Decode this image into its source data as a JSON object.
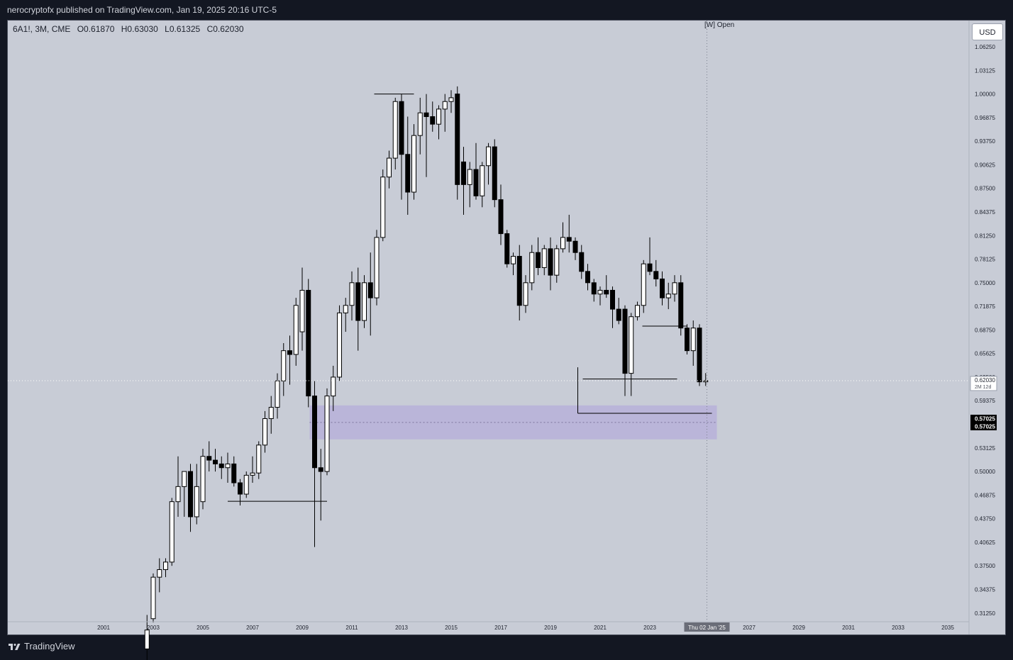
{
  "header": {
    "publisher_text": "nerocryptofx published on TradingView.com, Jan 19, 2025 20:16 UTC-5"
  },
  "legend": {
    "symbol": "6A1!, 3M, CME",
    "open": "O0.61870",
    "high": "H0.63030",
    "low": "L0.61325",
    "close": "C0.62030"
  },
  "currency_button": "USD",
  "session_label": "[W] Open",
  "footer": {
    "brand": "TradingView"
  },
  "colors": {
    "bull_body": "#ffffff",
    "bear_body": "#000000",
    "zone": "#b5aed9",
    "background": "#c8ccd6"
  },
  "chart_data": {
    "type": "candlestick",
    "interval": "3M",
    "x_tick_labels": [
      "2001",
      "2003",
      "2005",
      "2007",
      "2009",
      "2011",
      "2013",
      "2015",
      "2017",
      "2019",
      "2021",
      "2023",
      "2027",
      "2029",
      "2031",
      "2033",
      "2035"
    ],
    "crosshair_date_label": "Thu 02 Jan '25",
    "y_tick_labels": [
      "1.06250",
      "1.03125",
      "1.00000",
      "0.96875",
      "0.93750",
      "0.90625",
      "0.87500",
      "0.84375",
      "0.81250",
      "0.78125",
      "0.75000",
      "0.71875",
      "0.68750",
      "0.65625",
      "0.62500",
      "0.59375",
      "0.53125",
      "0.50000",
      "0.46875",
      "0.43750",
      "0.40625",
      "0.37500",
      "0.34375",
      "0.31250"
    ],
    "ylim": [
      0.31,
      1.075
    ],
    "price_label": {
      "value": "0.62030",
      "countdown": "2M 12d"
    },
    "level_labels": [
      "0.57025",
      "0.57025"
    ],
    "zone": {
      "x_start": 2009.3,
      "x_end": 2025.7,
      "y_low": 0.5425,
      "y_high": 0.5875
    },
    "levels": [
      {
        "x_start": 2006.0,
        "x_end": 2010.0,
        "y": 0.4605
      },
      {
        "x_start": 2011.9,
        "x_end": 2013.5,
        "y": 1.0
      },
      {
        "x_start": 2020.1,
        "x_end": 2025.5,
        "y": 0.577
      },
      {
        "x_start": 2020.3,
        "x_end": 2024.1,
        "y": 0.6225
      },
      {
        "x_start": 2022.7,
        "x_end": 2024.5,
        "y": 0.6925
      }
    ],
    "cursor_x": 2025.3,
    "cursor_y": 0.6203,
    "candles": [
      {
        "t": 2002.75,
        "o": 0.265,
        "h": 0.31,
        "l": 0.25,
        "c": 0.29
      },
      {
        "t": 2003.0,
        "o": 0.305,
        "h": 0.365,
        "l": 0.3,
        "c": 0.36
      },
      {
        "t": 2003.25,
        "o": 0.36,
        "h": 0.385,
        "l": 0.34,
        "c": 0.37
      },
      {
        "t": 2003.5,
        "o": 0.37,
        "h": 0.385,
        "l": 0.36,
        "c": 0.38
      },
      {
        "t": 2003.75,
        "o": 0.38,
        "h": 0.465,
        "l": 0.375,
        "c": 0.46
      },
      {
        "t": 2004.0,
        "o": 0.46,
        "h": 0.52,
        "l": 0.44,
        "c": 0.48
      },
      {
        "t": 2004.25,
        "o": 0.48,
        "h": 0.495,
        "l": 0.44,
        "c": 0.5
      },
      {
        "t": 2004.5,
        "o": 0.5,
        "h": 0.51,
        "l": 0.42,
        "c": 0.44
      },
      {
        "t": 2004.75,
        "o": 0.44,
        "h": 0.51,
        "l": 0.43,
        "c": 0.48
      },
      {
        "t": 2005.0,
        "o": 0.46,
        "h": 0.53,
        "l": 0.45,
        "c": 0.52
      },
      {
        "t": 2005.25,
        "o": 0.52,
        "h": 0.54,
        "l": 0.5,
        "c": 0.515
      },
      {
        "t": 2005.5,
        "o": 0.515,
        "h": 0.53,
        "l": 0.5,
        "c": 0.51
      },
      {
        "t": 2005.75,
        "o": 0.51,
        "h": 0.52,
        "l": 0.49,
        "c": 0.505
      },
      {
        "t": 2006.0,
        "o": 0.505,
        "h": 0.525,
        "l": 0.485,
        "c": 0.51
      },
      {
        "t": 2006.25,
        "o": 0.51,
        "h": 0.52,
        "l": 0.48,
        "c": 0.485
      },
      {
        "t": 2006.5,
        "o": 0.485,
        "h": 0.49,
        "l": 0.455,
        "c": 0.47
      },
      {
        "t": 2006.75,
        "o": 0.47,
        "h": 0.5,
        "l": 0.465,
        "c": 0.495
      },
      {
        "t": 2007.0,
        "o": 0.495,
        "h": 0.52,
        "l": 0.485,
        "c": 0.498
      },
      {
        "t": 2007.25,
        "o": 0.498,
        "h": 0.54,
        "l": 0.49,
        "c": 0.535
      },
      {
        "t": 2007.5,
        "o": 0.535,
        "h": 0.58,
        "l": 0.525,
        "c": 0.57
      },
      {
        "t": 2007.75,
        "o": 0.57,
        "h": 0.6,
        "l": 0.55,
        "c": 0.585
      },
      {
        "t": 2008.0,
        "o": 0.585,
        "h": 0.63,
        "l": 0.57,
        "c": 0.62
      },
      {
        "t": 2008.25,
        "o": 0.62,
        "h": 0.67,
        "l": 0.6,
        "c": 0.66
      },
      {
        "t": 2008.5,
        "o": 0.66,
        "h": 0.68,
        "l": 0.615,
        "c": 0.655
      },
      {
        "t": 2008.75,
        "o": 0.655,
        "h": 0.73,
        "l": 0.64,
        "c": 0.72
      },
      {
        "t": 2009.0,
        "o": 0.685,
        "h": 0.77,
        "l": 0.66,
        "c": 0.74
      },
      {
        "t": 2009.25,
        "o": 0.74,
        "h": 0.755,
        "l": 0.585,
        "c": 0.6
      },
      {
        "t": 2009.5,
        "o": 0.6,
        "h": 0.62,
        "l": 0.4,
        "c": 0.505
      },
      {
        "t": 2009.75,
        "o": 0.505,
        "h": 0.53,
        "l": 0.435,
        "c": 0.5
      },
      {
        "t": 2010.0,
        "o": 0.5,
        "h": 0.61,
        "l": 0.495,
        "c": 0.6
      },
      {
        "t": 2010.25,
        "o": 0.6,
        "h": 0.64,
        "l": 0.58,
        "c": 0.625
      },
      {
        "t": 2010.5,
        "o": 0.625,
        "h": 0.72,
        "l": 0.62,
        "c": 0.71
      },
      {
        "t": 2010.75,
        "o": 0.71,
        "h": 0.73,
        "l": 0.685,
        "c": 0.72
      },
      {
        "t": 2011.0,
        "o": 0.72,
        "h": 0.765,
        "l": 0.7,
        "c": 0.75
      },
      {
        "t": 2011.25,
        "o": 0.75,
        "h": 0.77,
        "l": 0.66,
        "c": 0.7
      },
      {
        "t": 2011.5,
        "o": 0.7,
        "h": 0.76,
        "l": 0.69,
        "c": 0.75
      },
      {
        "t": 2011.75,
        "o": 0.75,
        "h": 0.79,
        "l": 0.68,
        "c": 0.73
      },
      {
        "t": 2012.0,
        "o": 0.73,
        "h": 0.82,
        "l": 0.72,
        "c": 0.81
      },
      {
        "t": 2012.25,
        "o": 0.81,
        "h": 0.9,
        "l": 0.805,
        "c": 0.89
      },
      {
        "t": 2012.5,
        "o": 0.89,
        "h": 0.925,
        "l": 0.875,
        "c": 0.915
      },
      {
        "t": 2012.75,
        "o": 0.915,
        "h": 0.995,
        "l": 0.9,
        "c": 0.99
      },
      {
        "t": 2013.0,
        "o": 0.99,
        "h": 1.0,
        "l": 0.86,
        "c": 0.92
      },
      {
        "t": 2013.25,
        "o": 0.92,
        "h": 0.97,
        "l": 0.84,
        "c": 0.87
      },
      {
        "t": 2013.5,
        "o": 0.87,
        "h": 0.96,
        "l": 0.86,
        "c": 0.945
      },
      {
        "t": 2013.75,
        "o": 0.945,
        "h": 0.995,
        "l": 0.92,
        "c": 0.975
      },
      {
        "t": 2014.0,
        "o": 0.975,
        "h": 1.0,
        "l": 0.89,
        "c": 0.97
      },
      {
        "t": 2014.25,
        "o": 0.97,
        "h": 0.99,
        "l": 0.95,
        "c": 0.96
      },
      {
        "t": 2014.5,
        "o": 0.96,
        "h": 0.985,
        "l": 0.94,
        "c": 0.98
      },
      {
        "t": 2014.75,
        "o": 0.98,
        "h": 1.0,
        "l": 0.95,
        "c": 0.99
      },
      {
        "t": 2015.0,
        "o": 0.99,
        "h": 1.005,
        "l": 0.975,
        "c": 0.995
      },
      {
        "t": 2015.25,
        "o": 1.0,
        "h": 1.01,
        "l": 0.86,
        "c": 0.88
      },
      {
        "t": 2015.5,
        "o": 0.91,
        "h": 0.93,
        "l": 0.84,
        "c": 0.88
      },
      {
        "t": 2015.75,
        "o": 0.88,
        "h": 0.91,
        "l": 0.85,
        "c": 0.9
      },
      {
        "t": 2016.0,
        "o": 0.9,
        "h": 0.935,
        "l": 0.86,
        "c": 0.865
      },
      {
        "t": 2016.25,
        "o": 0.865,
        "h": 0.91,
        "l": 0.85,
        "c": 0.905
      },
      {
        "t": 2016.5,
        "o": 0.905,
        "h": 0.935,
        "l": 0.88,
        "c": 0.93
      },
      {
        "t": 2016.75,
        "o": 0.93,
        "h": 0.94,
        "l": 0.85,
        "c": 0.86
      },
      {
        "t": 2017.0,
        "o": 0.86,
        "h": 0.88,
        "l": 0.8,
        "c": 0.815
      },
      {
        "t": 2017.25,
        "o": 0.815,
        "h": 0.82,
        "l": 0.77,
        "c": 0.775
      },
      {
        "t": 2017.5,
        "o": 0.775,
        "h": 0.79,
        "l": 0.76,
        "c": 0.785
      },
      {
        "t": 2017.75,
        "o": 0.785,
        "h": 0.8,
        "l": 0.7,
        "c": 0.72
      },
      {
        "t": 2018.0,
        "o": 0.72,
        "h": 0.76,
        "l": 0.71,
        "c": 0.75
      },
      {
        "t": 2018.25,
        "o": 0.75,
        "h": 0.8,
        "l": 0.74,
        "c": 0.79
      },
      {
        "t": 2018.5,
        "o": 0.79,
        "h": 0.81,
        "l": 0.76,
        "c": 0.77
      },
      {
        "t": 2018.75,
        "o": 0.77,
        "h": 0.8,
        "l": 0.76,
        "c": 0.795
      },
      {
        "t": 2019.0,
        "o": 0.795,
        "h": 0.81,
        "l": 0.74,
        "c": 0.76
      },
      {
        "t": 2019.25,
        "o": 0.76,
        "h": 0.8,
        "l": 0.75,
        "c": 0.795
      },
      {
        "t": 2019.5,
        "o": 0.795,
        "h": 0.83,
        "l": 0.79,
        "c": 0.81
      },
      {
        "t": 2019.75,
        "o": 0.81,
        "h": 0.84,
        "l": 0.79,
        "c": 0.805
      },
      {
        "t": 2020.0,
        "o": 0.805,
        "h": 0.81,
        "l": 0.78,
        "c": 0.79
      },
      {
        "t": 2020.25,
        "o": 0.79,
        "h": 0.8,
        "l": 0.755,
        "c": 0.765
      },
      {
        "t": 2020.5,
        "o": 0.765,
        "h": 0.775,
        "l": 0.74,
        "c": 0.75
      },
      {
        "t": 2020.75,
        "o": 0.75,
        "h": 0.755,
        "l": 0.725,
        "c": 0.735
      },
      {
        "t": 2021.0,
        "o": 0.735,
        "h": 0.745,
        "l": 0.72,
        "c": 0.74
      },
      {
        "t": 2021.25,
        "o": 0.74,
        "h": 0.76,
        "l": 0.73,
        "c": 0.735
      },
      {
        "t": 2021.5,
        "o": 0.74,
        "h": 0.745,
        "l": 0.69,
        "c": 0.715
      },
      {
        "t": 2021.75,
        "o": 0.715,
        "h": 0.73,
        "l": 0.695,
        "c": 0.7
      },
      {
        "t": 2022.0,
        "o": 0.715,
        "h": 0.72,
        "l": 0.6,
        "c": 0.63
      },
      {
        "t": 2022.25,
        "o": 0.63,
        "h": 0.71,
        "l": 0.6,
        "c": 0.705
      },
      {
        "t": 2022.5,
        "o": 0.705,
        "h": 0.725,
        "l": 0.7,
        "c": 0.72
      },
      {
        "t": 2022.75,
        "o": 0.72,
        "h": 0.78,
        "l": 0.71,
        "c": 0.775
      },
      {
        "t": 2023.0,
        "o": 0.775,
        "h": 0.81,
        "l": 0.76,
        "c": 0.765
      },
      {
        "t": 2023.25,
        "o": 0.765,
        "h": 0.78,
        "l": 0.745,
        "c": 0.755
      },
      {
        "t": 2023.5,
        "o": 0.755,
        "h": 0.765,
        "l": 0.72,
        "c": 0.73
      },
      {
        "t": 2023.75,
        "o": 0.73,
        "h": 0.75,
        "l": 0.715,
        "c": 0.735
      },
      {
        "t": 2024.0,
        "o": 0.735,
        "h": 0.76,
        "l": 0.725,
        "c": 0.75
      },
      {
        "t": 2024.25,
        "o": 0.75,
        "h": 0.76,
        "l": 0.68,
        "c": 0.69
      },
      {
        "t": 2024.5,
        "o": 0.69,
        "h": 0.695,
        "l": 0.655,
        "c": 0.66
      },
      {
        "t": 2024.75,
        "o": 0.66,
        "h": 0.7,
        "l": 0.64,
        "c": 0.69
      },
      {
        "t": 2025.0,
        "o": 0.69,
        "h": 0.695,
        "l": 0.61325,
        "c": 0.6187
      },
      {
        "t": 2025.25,
        "o": 0.6187,
        "h": 0.6303,
        "l": 0.61325,
        "c": 0.6203
      }
    ]
  }
}
